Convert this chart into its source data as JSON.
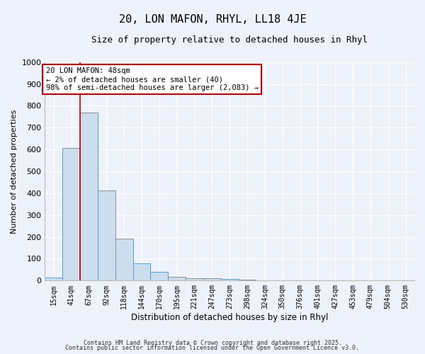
{
  "title": "20, LON MAFON, RHYL, LL18 4JE",
  "subtitle": "Size of property relative to detached houses in Rhyl",
  "xlabel": "Distribution of detached houses by size in Rhyl",
  "ylabel": "Number of detached properties",
  "bar_labels": [
    "15sqm",
    "41sqm",
    "67sqm",
    "92sqm",
    "118sqm",
    "144sqm",
    "170sqm",
    "195sqm",
    "221sqm",
    "247sqm",
    "273sqm",
    "298sqm",
    "324sqm",
    "350sqm",
    "376sqm",
    "401sqm",
    "427sqm",
    "453sqm",
    "479sqm",
    "504sqm",
    "530sqm"
  ],
  "bar_values": [
    15,
    608,
    770,
    413,
    192,
    78,
    40,
    18,
    12,
    10,
    7,
    5,
    0,
    0,
    0,
    0,
    0,
    0,
    0,
    0,
    0
  ],
  "bar_color": "#ccdded",
  "bar_edge_color": "#6699bb",
  "vline_color": "#cc0000",
  "annotation_title": "20 LON MAFON: 48sqm",
  "annotation_line1": "← 2% of detached houses are smaller (40)",
  "annotation_line2": "98% of semi-detached houses are larger (2,083) →",
  "annotation_box_color": "#cc0000",
  "ylim": [
    0,
    1000
  ],
  "yticks": [
    0,
    100,
    200,
    300,
    400,
    500,
    600,
    700,
    800,
    900,
    1000
  ],
  "bg_color": "#eef2fa",
  "grid_color": "#ffffff",
  "footer1": "Contains HM Land Registry data © Crown copyright and database right 2025.",
  "footer2": "Contains public sector information licensed under the Open Government Licence v3.0."
}
